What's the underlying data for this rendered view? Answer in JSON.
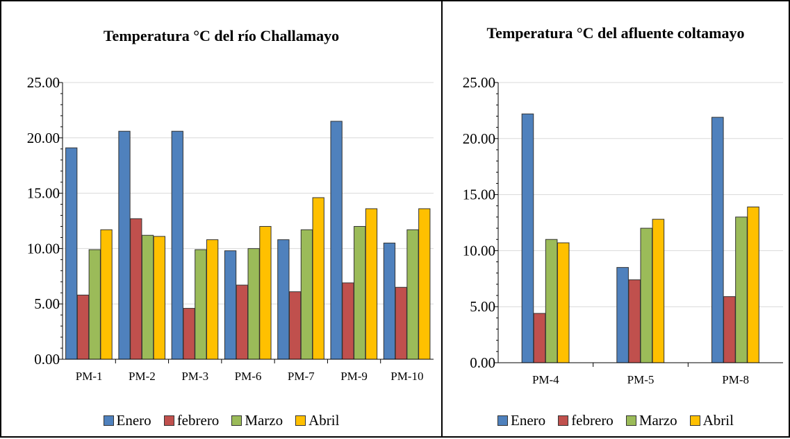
{
  "colors": {
    "Enero": "#4f81bd",
    "febrero": "#c0504d",
    "Marzo": "#9bbb59",
    "Abril": "#ffc000"
  },
  "legend": [
    {
      "name": "Enero",
      "color": "#4f81bd"
    },
    {
      "name": "febrero",
      "color": "#c0504d"
    },
    {
      "name": "Marzo",
      "color": "#9bbb59"
    },
    {
      "name": "Abril",
      "color": "#ffc000"
    }
  ],
  "chart_data": [
    {
      "type": "bar",
      "title": "Temperatura °C del río Challamayo",
      "categories": [
        "PM-1",
        "PM-2",
        "PM-3",
        "PM-6",
        "PM-7",
        "PM-9",
        "PM-10"
      ],
      "series": [
        {
          "name": "Enero",
          "values": [
            19.1,
            20.6,
            20.6,
            9.8,
            10.8,
            21.5,
            10.5
          ]
        },
        {
          "name": "febrero",
          "values": [
            5.8,
            12.7,
            4.6,
            6.7,
            6.1,
            6.9,
            6.5
          ]
        },
        {
          "name": "Marzo",
          "values": [
            9.9,
            11.2,
            9.9,
            10.0,
            11.7,
            12.0,
            11.7
          ]
        },
        {
          "name": "Abril",
          "values": [
            11.7,
            11.1,
            10.8,
            12.0,
            14.6,
            13.6,
            13.6
          ]
        }
      ],
      "yticks": [
        "0.00",
        "5.00",
        "10.00",
        "15.00",
        "20.00",
        "25.00"
      ],
      "ylim": [
        0,
        25
      ],
      "grid": true,
      "legend_position": "bottom"
    },
    {
      "type": "bar",
      "title": "Temperatura °C del afluente coltamayo",
      "categories": [
        "PM-4",
        "PM-5",
        "PM-8"
      ],
      "series": [
        {
          "name": "Enero",
          "values": [
            22.2,
            8.5,
            21.9
          ]
        },
        {
          "name": "febrero",
          "values": [
            4.4,
            7.4,
            5.9
          ]
        },
        {
          "name": "Marzo",
          "values": [
            11.0,
            12.0,
            13.0
          ]
        },
        {
          "name": "Abril",
          "values": [
            10.7,
            12.8,
            13.9
          ]
        }
      ],
      "yticks": [
        "0.00",
        "5.00",
        "10.00",
        "15.00",
        "20.00",
        "25.00"
      ],
      "ylim": [
        0,
        25
      ],
      "grid": true,
      "legend_position": "bottom"
    }
  ]
}
